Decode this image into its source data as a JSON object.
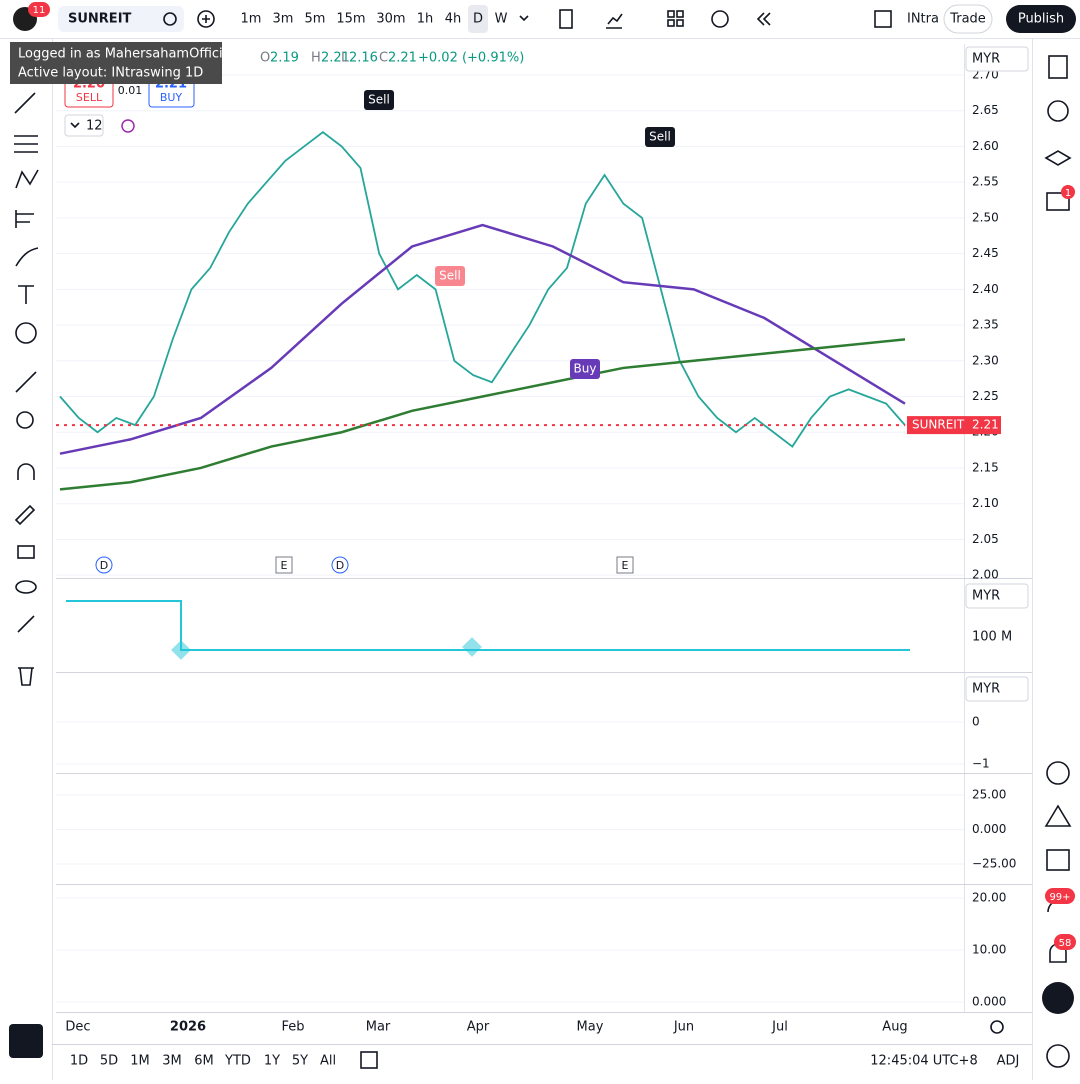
{
  "header": {
    "badge": "11",
    "symbol": "SUNREIT",
    "intervals": [
      "1m",
      "3m",
      "5m",
      "15m",
      "30m",
      "1h",
      "4h",
      "D",
      "W"
    ],
    "layout_name": "INtra",
    "trade": "Trade",
    "publish": "Publish"
  },
  "tooltip": {
    "line1": "Logged in as MahersahamOfficial",
    "line2": "Active layout: INtraswing 1D"
  },
  "legend": {
    "o_label": "O",
    "o": "2.19",
    "h_label": "H",
    "h": "2.21",
    "l_label": "L",
    "l": "2.16",
    "c_label": "C",
    "c": "2.21",
    "change": "+0.02 (+0.91%)"
  },
  "trade_panel": {
    "sell_price": "2.20",
    "sell": "SELL",
    "spread": "0.01",
    "buy_price": "2.21",
    "buy": "BUY"
  },
  "indicator_count": "12",
  "chart_data": {
    "type": "line",
    "currency": "MYR",
    "ylim": [
      1.996,
      2.742
    ],
    "yticks": [
      {
        "value": 2.7,
        "label": "2.70"
      },
      2.65,
      {
        "value": 2.6,
        "label": "2.60"
      },
      2.55,
      {
        "value": 2.5,
        "label": "2.50"
      },
      2.45,
      {
        "value": 2.4,
        "label": "2.40"
      },
      2.35,
      {
        "value": 2.3,
        "label": "2.30"
      },
      2.25,
      {
        "value": 2.2,
        "label": "2.20"
      },
      2.15,
      {
        "value": 2.1,
        "label": "2.10"
      },
      2.05,
      {
        "value": 2.0,
        "label": "2.00"
      }
    ],
    "series": [
      {
        "color": "#26a69a",
        "values": [
          2.25,
          2.22,
          2.2,
          2.22,
          2.21,
          2.25,
          2.33,
          2.4,
          2.43,
          2.48,
          2.52,
          2.55,
          2.58,
          2.6,
          2.62,
          2.6,
          2.57,
          2.45,
          2.4,
          2.42,
          2.4,
          2.3,
          2.28,
          2.27,
          2.31,
          2.35,
          2.4,
          2.43,
          2.52,
          2.56,
          2.52,
          2.5,
          2.4,
          2.3,
          2.25,
          2.22,
          2.2,
          2.22,
          2.2,
          2.18,
          2.22,
          2.25,
          2.26,
          2.25,
          2.24,
          2.21
        ]
      },
      {
        "color": "#673ab7",
        "values": [
          2.17,
          2.19,
          2.22,
          2.29,
          2.38,
          2.46,
          2.49,
          2.46,
          2.41,
          2.4,
          2.36,
          2.3,
          2.24
        ]
      },
      {
        "color": "#2e7d32",
        "values": [
          2.12,
          2.13,
          2.15,
          2.18,
          2.2,
          2.23,
          2.25,
          2.27,
          2.29,
          2.3,
          2.31,
          2.32,
          2.33
        ]
      }
    ],
    "last_price_label": "SUNREIT",
    "last_price": 2.21,
    "signals": [
      "Sell",
      "Sell",
      "Buy",
      "Sell"
    ],
    "events": [
      "D",
      "E",
      "D",
      "E"
    ],
    "x_labels": [
      "Dec",
      "2026",
      "Feb",
      "Mar",
      "Apr",
      "May",
      "Jun",
      "Jul",
      "Aug"
    ]
  },
  "panes": [
    {
      "currency": "MYR",
      "label": "100 M"
    },
    {
      "currency": "MYR",
      "ylim": [
        -1.14,
        1.07
      ],
      "yticks": [
        0,
        {
          "value": -1,
          "label": "−1"
        }
      ]
    },
    {
      "ylim": [
        -38,
        39.5
      ],
      "yticks": [
        {
          "value": 25,
          "label": "25.00"
        },
        {
          "value": 0,
          "label": "0.000"
        },
        {
          "value": -25,
          "label": "−25.00"
        }
      ]
    },
    {
      "ylim": [
        -1.9,
        22.5
      ],
      "yticks": [
        {
          "value": 20,
          "label": "20.00"
        },
        {
          "value": 10,
          "label": "10.00"
        },
        {
          "value": 0,
          "label": "0.000"
        }
      ]
    }
  ],
  "bottom_bar": {
    "ranges": [
      "1D",
      "5D",
      "1M",
      "3M",
      "6M",
      "YTD",
      "1Y",
      "5Y",
      "All"
    ],
    "clock": "12:45:04 UTC+8",
    "adj": "ADJ"
  },
  "sidebar_badges": {
    "chat": "1",
    "feed": "99+",
    "alerts": "58"
  }
}
